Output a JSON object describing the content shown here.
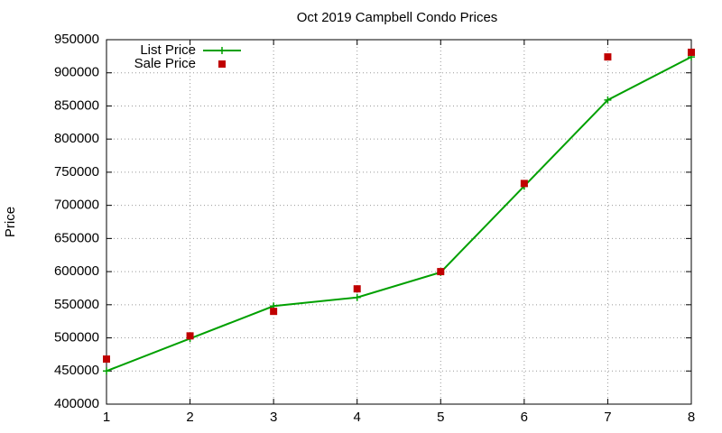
{
  "chart_data": {
    "type": "line",
    "title": "Oct 2019 Campbell Condo Prices",
    "y_label": "Price",
    "x": [
      1,
      2,
      3,
      4,
      5,
      6,
      7,
      8
    ],
    "series": [
      {
        "name": "List Price",
        "color": "#00a000",
        "style": "linespoints",
        "values": [
          450000,
          499000,
          548000,
          561000,
          599000,
          729000,
          859000,
          924000
        ]
      },
      {
        "name": "Sale Price",
        "color": "#c00000",
        "style": "points",
        "values": [
          468000,
          503000,
          540000,
          574000,
          600000,
          733000,
          924000,
          931000
        ]
      }
    ],
    "xlim": [
      1,
      8
    ],
    "xticks": [
      1,
      2,
      3,
      4,
      5,
      6,
      7,
      8
    ],
    "ylim": [
      400000,
      950000
    ],
    "yticks": [
      400000,
      450000,
      500000,
      550000,
      600000,
      650000,
      700000,
      750000,
      800000,
      850000,
      900000,
      950000
    ],
    "grid": true,
    "legend": "top-left"
  }
}
